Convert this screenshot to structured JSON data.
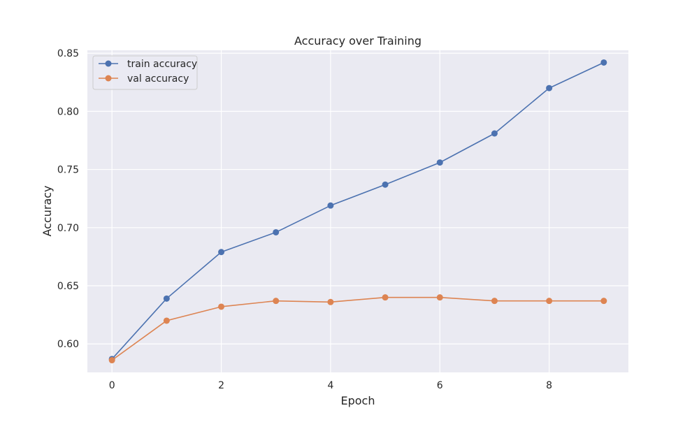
{
  "chart_data": {
    "type": "line",
    "title": "Accuracy over Training",
    "xlabel": "Epoch",
    "ylabel": "Accuracy",
    "x": [
      0,
      1,
      2,
      3,
      4,
      5,
      6,
      7,
      8,
      9
    ],
    "xticks": [
      0,
      2,
      4,
      6,
      8
    ],
    "yticks": [
      0.6,
      0.65,
      0.7,
      0.75,
      0.8,
      0.85
    ],
    "xlim": [
      -0.45,
      9.45
    ],
    "ylim": [
      0.5755,
      0.8525
    ],
    "grid": true,
    "legend_position": "top-left",
    "series": [
      {
        "name": "train accuracy",
        "color": "#4c72b0",
        "marker": "circle",
        "values": [
          0.587,
          0.639,
          0.679,
          0.696,
          0.719,
          0.737,
          0.756,
          0.781,
          0.82,
          0.842
        ]
      },
      {
        "name": "val accuracy",
        "color": "#dd8452",
        "marker": "circle",
        "values": [
          0.586,
          0.62,
          0.632,
          0.637,
          0.636,
          0.64,
          0.64,
          0.637,
          0.637,
          0.637
        ]
      }
    ]
  },
  "colors": {
    "plot_background": "#eaeaf2",
    "grid": "#ffffff",
    "text": "#262626"
  }
}
